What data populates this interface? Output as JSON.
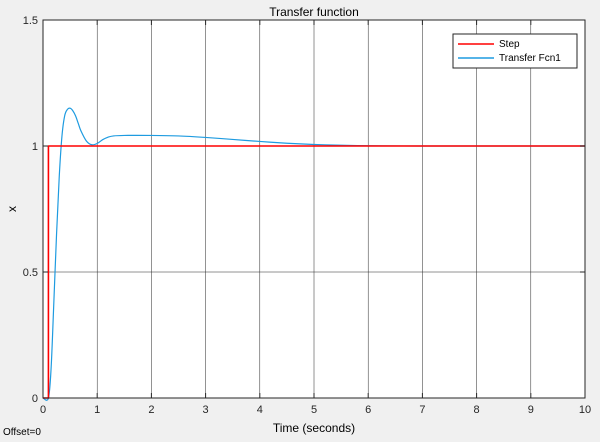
{
  "chart_data": {
    "type": "line",
    "title": "Transfer function",
    "xlabel": "Time (seconds)",
    "ylabel": "x",
    "xlim": [
      0,
      10
    ],
    "ylim": [
      0,
      1.5
    ],
    "xticks": [
      0,
      1,
      2,
      3,
      4,
      5,
      6,
      7,
      8,
      9,
      10
    ],
    "yticks": [
      0,
      0.5,
      1,
      1.5
    ],
    "xtick_labels": [
      "0",
      "1",
      "2",
      "3",
      "4",
      "5",
      "6",
      "7",
      "8",
      "9",
      "10"
    ],
    "ytick_labels": [
      "0",
      "0.5",
      "1",
      "1.5"
    ],
    "grid": true,
    "legend_position": "top-right",
    "series": [
      {
        "name": "Step",
        "color": "#ff0000",
        "x": [
          0,
          0.1,
          0.1,
          10
        ],
        "y": [
          0,
          0,
          1,
          1
        ]
      },
      {
        "name": "Transfer Fcn1",
        "color": "#1e9be0",
        "x": [
          0,
          0.1,
          0.15,
          0.2,
          0.25,
          0.3,
          0.35,
          0.4,
          0.45,
          0.5,
          0.55,
          0.6,
          0.65,
          0.7,
          0.8,
          0.9,
          1.0,
          1.1,
          1.2,
          1.3,
          1.5,
          2.0,
          2.5,
          3.0,
          3.5,
          4.0,
          4.5,
          5.0,
          5.5,
          6.0,
          7.0,
          8.0,
          9.0,
          10.0
        ],
        "y": [
          0,
          0,
          0.12,
          0.38,
          0.65,
          0.88,
          1.04,
          1.12,
          1.145,
          1.15,
          1.14,
          1.12,
          1.09,
          1.06,
          1.02,
          1.005,
          1.01,
          1.025,
          1.035,
          1.04,
          1.042,
          1.042,
          1.04,
          1.034,
          1.026,
          1.018,
          1.011,
          1.006,
          1.003,
          1.001,
          1.0,
          1.0,
          1.0,
          1.0
        ]
      }
    ]
  },
  "footer": {
    "offset_label": "Offset=0"
  }
}
